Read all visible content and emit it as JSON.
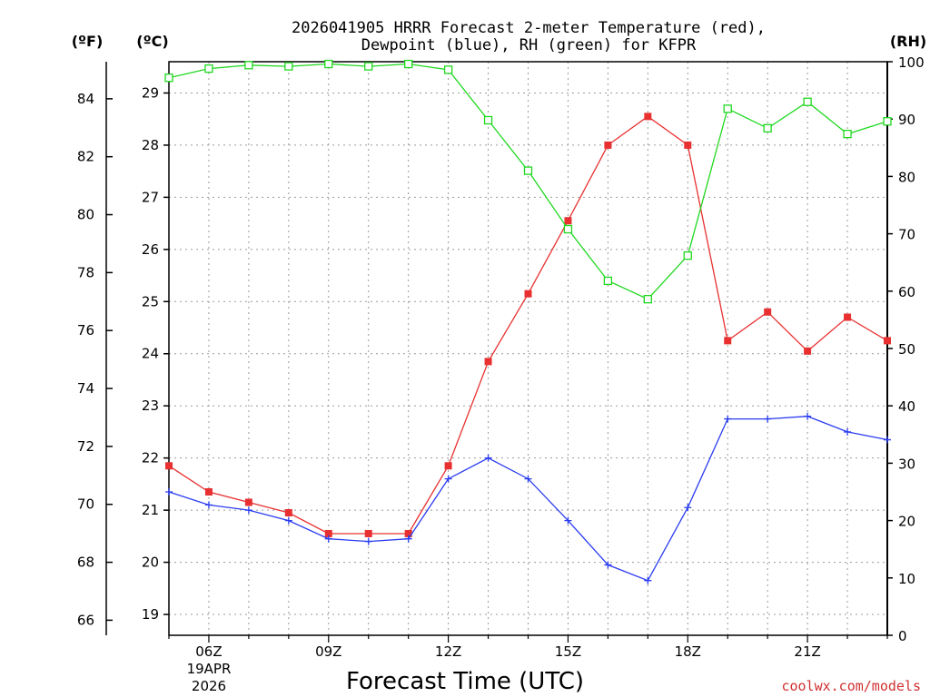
{
  "header": {
    "title_line1": "2026041905 HRRR Forecast 2-meter Temperature (red),",
    "title_line2": "Dewpoint (blue), RH (green) for KFPR"
  },
  "axis_units": {
    "fahrenheit": "(ºF)",
    "celsius": "(ºC)",
    "rh": "(RH)"
  },
  "footer": {
    "xlabel": "Forecast Time (UTC)",
    "date_line1": "19APR",
    "date_line2": "2026",
    "credit": "coolwx.com/models"
  },
  "chart_data": {
    "type": "line",
    "title": "2026041905 HRRR Forecast 2-meter Temperature (red), Dewpoint (blue), RH (green) for KFPR",
    "xlabel": "Forecast Time (UTC)",
    "x_hours": [
      5,
      6,
      7,
      8,
      9,
      10,
      11,
      12,
      13,
      14,
      15,
      16,
      17,
      18,
      19,
      20,
      21,
      22,
      23
    ],
    "xlim_hours": [
      5,
      23
    ],
    "x_ticks": [
      {
        "hour": 6,
        "label": "06Z"
      },
      {
        "hour": 9,
        "label": "09Z"
      },
      {
        "hour": 12,
        "label": "12Z"
      },
      {
        "hour": 15,
        "label": "15Z"
      },
      {
        "hour": 18,
        "label": "18Z"
      },
      {
        "hour": 21,
        "label": "21Z"
      }
    ],
    "celsius_axis": {
      "label": "(ºC)",
      "min": 18.6,
      "max": 29.6,
      "ticks": [
        19,
        20,
        21,
        22,
        23,
        24,
        25,
        26,
        27,
        28,
        29
      ]
    },
    "fahrenheit_axis": {
      "label": "(ºF)",
      "ticks": [
        66,
        68,
        70,
        72,
        74,
        76,
        78,
        80,
        82,
        84
      ]
    },
    "rh_axis": {
      "label": "(RH)",
      "min": 0,
      "max": 100,
      "ticks": [
        0,
        10,
        20,
        30,
        40,
        50,
        60,
        70,
        80,
        90,
        100
      ]
    },
    "grid": true,
    "series": [
      {
        "name": "Temperature",
        "axis": "celsius",
        "color": "#e83030",
        "marker": "filled-square",
        "values": [
          21.85,
          21.35,
          21.15,
          20.95,
          20.55,
          20.55,
          20.55,
          21.85,
          23.85,
          25.15,
          26.55,
          28.0,
          28.55,
          28.0,
          24.25,
          24.8,
          24.05,
          24.7,
          24.25
        ]
      },
      {
        "name": "Dewpoint",
        "axis": "celsius",
        "color": "#2a3cf0",
        "marker": "plus",
        "values": [
          21.35,
          21.1,
          21.0,
          20.8,
          20.45,
          20.4,
          20.45,
          21.6,
          22.0,
          21.6,
          20.8,
          19.95,
          19.65,
          21.05,
          22.75,
          22.75,
          22.8,
          22.5,
          22.35
        ]
      },
      {
        "name": "RH",
        "axis": "rh",
        "color": "#20d820",
        "marker": "open-square",
        "values": [
          97.2,
          98.8,
          99.4,
          99.2,
          99.6,
          99.2,
          99.6,
          98.6,
          89.8,
          81.0,
          70.8,
          61.8,
          58.6,
          66.2,
          91.8,
          88.4,
          93.0,
          87.4,
          89.6
        ]
      }
    ]
  }
}
